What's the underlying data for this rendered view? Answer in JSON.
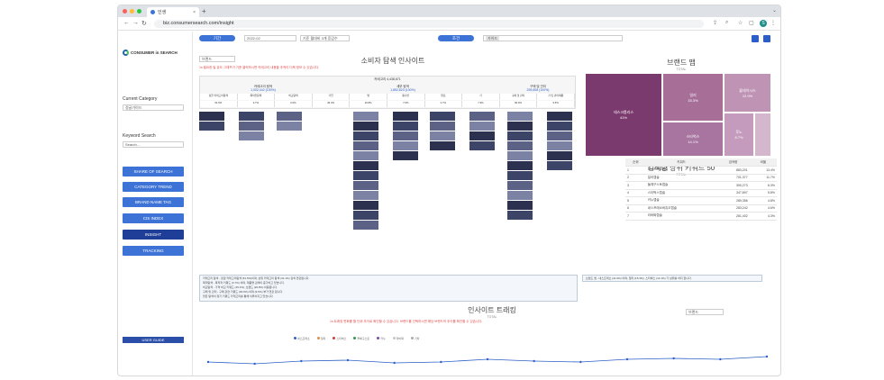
{
  "browser": {
    "tab_title": "인생",
    "url": "biz.consumersearch.com/insight",
    "profile": "S"
  },
  "sidebar": {
    "brand": "CONSUMER in SEARCH",
    "current_category_label": "Current Category",
    "category_value": "정글가이드",
    "keyword_label": "Keyword Search",
    "keyword_placeholder": "Search...",
    "menu": [
      "SHARE OF SEARCH",
      "CATEGORY TREND",
      "BRAND NAME TAG",
      "CIS INDEX",
      "INSIGHT",
      "TRACKING"
    ],
    "user_guide": "USER GUIDE"
  },
  "filters": {
    "period_label": "기간",
    "period_value": "2022-02",
    "compare_value": "기준 월대비 3개 증감수",
    "condition_label": "조건",
    "condition_chip": "가이드"
  },
  "explorer": {
    "title": "소비자 탐색 인사이트",
    "brand_select": "브랜드",
    "note": "1s 필요한 빌 유도 그래프가 기준 클릭하시면 카테고리 내용을 추적이 더욱 정보 수 있습니다.",
    "header_total": "카테고리 4,438,671",
    "groups": [
      {
        "label": "카테고리 탐색",
        "value": "1,002,442 (100%)"
      },
      {
        "label": "세부 탐색",
        "value": "1,852,823 (100%)"
      },
      {
        "label": "구매 및 관리",
        "value": "259,808 (100%)"
      }
    ],
    "cols": [
      "정글 카테고리탐색",
      "목적인탐색",
      "비교탐색",
      "가입",
      "방",
      "동사전",
      "원료",
      "가",
      "구매 및 관리",
      "가 및 관리제품"
    ],
    "pcts": [
      "51.5%",
      "3.7%",
      "0.0%",
      "45.4%",
      "20.8%",
      "7.6%",
      "2.7%",
      "7.9%",
      "90.6%",
      "9.5%"
    ]
  },
  "treemap": {
    "title": "브랜드 맵",
    "subtitle": "TOTAL",
    "cells": [
      {
        "label": "데스크톱리스",
        "pct": "41%",
        "color": "#7b3a6e"
      },
      {
        "label": "일리",
        "pct": "15.3%",
        "color": "#a76f98"
      },
      {
        "label": "블레이시스",
        "pct": "12.9%",
        "color": "#be93b4"
      },
      {
        "label": "스타벅스",
        "pct": "14.1%",
        "color": "#a874a0"
      },
      {
        "label": "루노",
        "pct": "8.7%",
        "color": "#c49bbd"
      },
      {
        "label": "",
        "pct": "",
        "color": "#d4b7cd"
      }
    ]
  },
  "keywords": {
    "title": "검색량 상위 키워드 50",
    "subtitle": "TOTAL",
    "headers": [
      "순위",
      "키워드",
      "검색량",
      "비율"
    ],
    "rows": [
      [
        "1",
        "네스프레소캡슐",
        "883,201",
        "13.4%"
      ],
      [
        "2",
        "일리캡슐",
        "701,377",
        "11.7%"
      ],
      [
        "3",
        "돌체구스토캡슐",
        "390,273",
        "6.3%"
      ],
      [
        "4",
        "스타벅스캡슐",
        "347,897",
        "5.8%"
      ],
      [
        "5",
        "카누캡슐",
        "289,356",
        "4.8%"
      ],
      [
        "6",
        "네스프레소버츄오캡슐",
        "283,242",
        "4.6%"
      ],
      [
        "7",
        "라바짜캡슐",
        "261,402",
        "4.3%"
      ]
    ]
  },
  "summary_left": [
    "카테고리 탐색 - 정글 카테고리탐색 (51.5%)이며, 상위 카테고리 탐색 (31.1%) 검색 연관됩니다.",
    "목적탐색 - 목적적 키워드 (3.7%) 이며, 제품명 검색이 증가하고 있습니다.",
    "비교탐색 - 가격 비교 키워드 (45.4%), 브랜드 (20.8%) 이용됩니다.",
    "구매 및 관리 - 구매 관련 키워드 (90.6%) 이며 (9.5%) 부가 연관 됩니다.",
    "많은 탐색이 정기 키워드 카테고리를 통해 이루어지고 있습니다."
  ],
  "summary_right": "브랜드 맵 - 네스프레소 (41.0%) 이며, 일리 (15.3%), 스타벅스 (14.1%) 가 상위를 차지 합니다.",
  "tracking": {
    "title": "인사이트 트래킹",
    "subtitle": "TOTAL",
    "select": "브랜드",
    "note": "1s 트래킹 변화를 월 단위 추이로 확인할 수 있습니다. 브랜드를 선택하시면 해당 브랜드의 추이를 확인할 수 있습니다.",
    "legend": [
      "네스프레소",
      "일리",
      "스타벅스",
      "돌체구스토",
      "카누",
      "라바짜",
      "기타"
    ],
    "legend_colors": [
      "#2c5fc7",
      "#e0904a",
      "#cc3e3e",
      "#2f9a4a",
      "#7b48a8",
      "#c7c7c7",
      "#aaaaaa"
    ]
  },
  "chart_data": {
    "type": "line",
    "x": [
      "2021-02",
      "2021-03",
      "2021-04",
      "2021-05",
      "2021-06",
      "2021-07",
      "2021-08",
      "2021-09",
      "2021-10",
      "2021-11",
      "2021-12",
      "2022-01",
      "2022-02"
    ],
    "series": [
      {
        "name": "네스프레소",
        "values": [
          12,
          10,
          13,
          14,
          11,
          12,
          15,
          13,
          12,
          15,
          16,
          15,
          18
        ]
      }
    ],
    "ylim": [
      0,
      30
    ]
  }
}
